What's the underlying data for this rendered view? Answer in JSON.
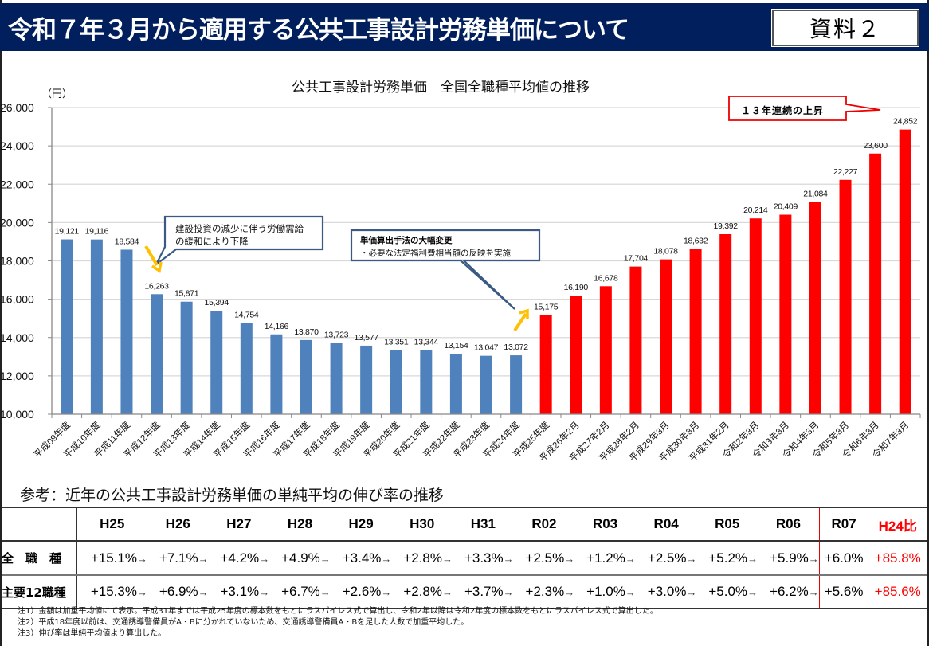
{
  "header": {
    "title": "令和７年３月から適用する公共工事設計労務単価について",
    "badge": "資料２"
  },
  "chart_data": {
    "type": "bar",
    "title": "公共工事設計労務単価　全国全職種平均値の推移",
    "ylabel": "（円）",
    "xlabel": "",
    "ylim": [
      10000,
      26000
    ],
    "yticks": [
      10000,
      12000,
      14000,
      16000,
      18000,
      20000,
      22000,
      24000,
      26000
    ],
    "ytick_labels": [
      "10,000",
      "12,000",
      "14,000",
      "16,000",
      "18,000",
      "20,000",
      "22,000",
      "24,000",
      "26,000"
    ],
    "grid": true,
    "categories": [
      "平成09年度",
      "平成10年度",
      "平成11年度",
      "平成12年度",
      "平成13年度",
      "平成14年度",
      "平成15年度",
      "平成16年度",
      "平成17年度",
      "平成18年度",
      "平成19年度",
      "平成20年度",
      "平成21年度",
      "平成22年度",
      "平成23年度",
      "平成24年度",
      "平成25年度",
      "平成26年2月",
      "平成27年2月",
      "平成28年2月",
      "平成29年3月",
      "平成30年3月",
      "平成31年2月",
      "令和2年3月",
      "令和3年3月",
      "令和4年3月",
      "令和5年3月",
      "令和6年3月",
      "令和7年3月"
    ],
    "values": [
      19121,
      19116,
      18584,
      16263,
      15871,
      15394,
      14754,
      14166,
      13870,
      13723,
      13577,
      13351,
      13344,
      13154,
      13047,
      13072,
      15175,
      16190,
      16678,
      17704,
      18078,
      18632,
      19392,
      20214,
      20409,
      21084,
      22227,
      23600,
      24852
    ],
    "value_labels": [
      "19,121",
      "19,116",
      "18,584",
      "16,263",
      "15,871",
      "15,394",
      "14,754",
      "14,166",
      "13,870",
      "13,723",
      "13,577",
      "13,351",
      "13,344",
      "13,154",
      "13,047",
      "13,072",
      "15,175",
      "16,190",
      "16,678",
      "17,704",
      "18,078",
      "18,632",
      "19,392",
      "20,214",
      "20,409",
      "21,084",
      "22,227",
      "23,600",
      "24,852"
    ],
    "series_colors": {
      "decline": "#4f81bd",
      "rise": "#ff0000"
    },
    "rise_start_index": 16,
    "annotations": [
      {
        "text_lines": [
          "建設投資の減少に伴う労働需給",
          "の緩和により下降"
        ],
        "style": "callout-blue"
      },
      {
        "text_lines": [
          "単価算出手法の大幅変更",
          "・必要な法定福利費相当額の反映を実施"
        ],
        "style": "callout-blue"
      },
      {
        "text_lines": [
          "１３年連続の上昇"
        ],
        "style": "callout-red"
      }
    ]
  },
  "reference": {
    "title": "参考：近年の公共工事設計労務単価の単純平均の伸び率の推移",
    "columns": [
      "H25",
      "H26",
      "H27",
      "H28",
      "H29",
      "H30",
      "H31",
      "R02",
      "R03",
      "R04",
      "R05",
      "R06",
      "R07",
      "H24比"
    ],
    "arrow": "→",
    "rows": [
      {
        "label": "全　職　種",
        "values": [
          "+15.1%",
          "+7.1%",
          "+4.2%",
          "+4.9%",
          "+3.4%",
          "+2.8%",
          "+3.3%",
          "+2.5%",
          "+1.2%",
          "+2.5%",
          "+5.2%",
          "+5.9%",
          "+6.0%",
          "+85.8%"
        ]
      },
      {
        "label": "主要12職種",
        "values": [
          "+15.3%",
          "+6.9%",
          "+3.1%",
          "+6.7%",
          "+2.6%",
          "+2.8%",
          "+3.7%",
          "+2.3%",
          "+1.0%",
          "+3.0%",
          "+5.0%",
          "+6.2%",
          "+5.6%",
          "+85.6%"
        ]
      }
    ]
  },
  "notes": [
    "注1）金額は加重平均値にて表示。平成31年までは平成25年度の標本数をもとにラスパイレス式で算出し、令和2年以降は令和2年度の標本数をもとにラスパイレス式で算出した。",
    "注2）平成18年度以前は、交通誘導警備員がA・Bに分かれていないため、交通誘導警備員A・Bを足した人数で加重平均した。",
    "注3）伸び率は単純平均値より算出した。"
  ]
}
